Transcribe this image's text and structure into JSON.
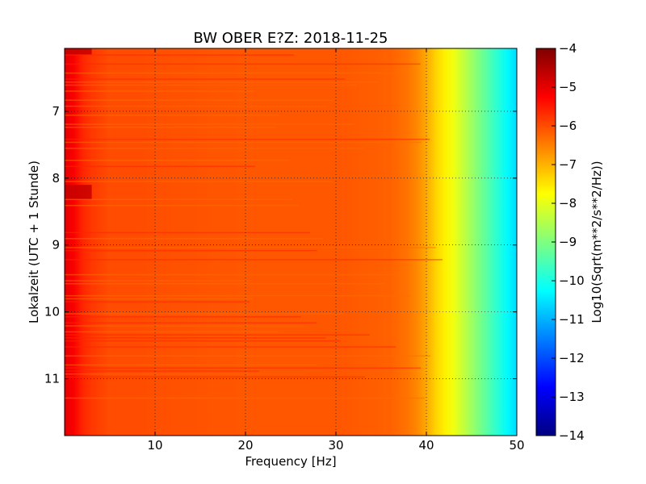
{
  "chart_data": {
    "type": "heatmap",
    "title": "BW OBER E?Z: 2018-11-25",
    "xlabel": "Frequency [Hz]",
    "ylabel": "Lokalzeit (UTC + 1 Stunde)",
    "xlim": [
      0,
      50
    ],
    "ylim": [
      11.85,
      6.06
    ],
    "y_inverted": true,
    "xticks": [
      10,
      20,
      30,
      40,
      50
    ],
    "yticks": [
      7,
      8,
      9,
      10,
      11
    ],
    "grid": true,
    "colormap": "jet",
    "colorbar": {
      "label": "Log10(Sqrt(m**2/s**2/Hz))",
      "range": [
        -14,
        -4
      ],
      "ticks": [
        -4,
        -5,
        -6,
        -7,
        -8,
        -9,
        -10,
        -11,
        -12,
        -13,
        -14
      ]
    },
    "profile": {
      "frequency": [
        0,
        1,
        2,
        3,
        5,
        8,
        12,
        20,
        30,
        36,
        38,
        39,
        40,
        41,
        42,
        43,
        44,
        45,
        46,
        47,
        48,
        49,
        50
      ],
      "value": [
        -5.0,
        -5.2,
        -5.6,
        -5.8,
        -6.0,
        -6.0,
        -6.05,
        -6.1,
        -6.1,
        -6.2,
        -6.4,
        -6.6,
        -6.9,
        -7.3,
        -7.6,
        -7.9,
        -8.3,
        -8.7,
        -9.1,
        -9.5,
        -9.9,
        -10.3,
        -10.6
      ]
    },
    "dark_time_bands": [
      [
        6.06,
        6.15
      ],
      [
        8.1,
        8.32
      ]
    ],
    "colors": {
      "cmap_stops": [
        "#00007f",
        "#0000ff",
        "#007fff",
        "#00ffff",
        "#7fff7f",
        "#ffff00",
        "#ff7f00",
        "#ff0000",
        "#7f0000"
      ]
    }
  }
}
